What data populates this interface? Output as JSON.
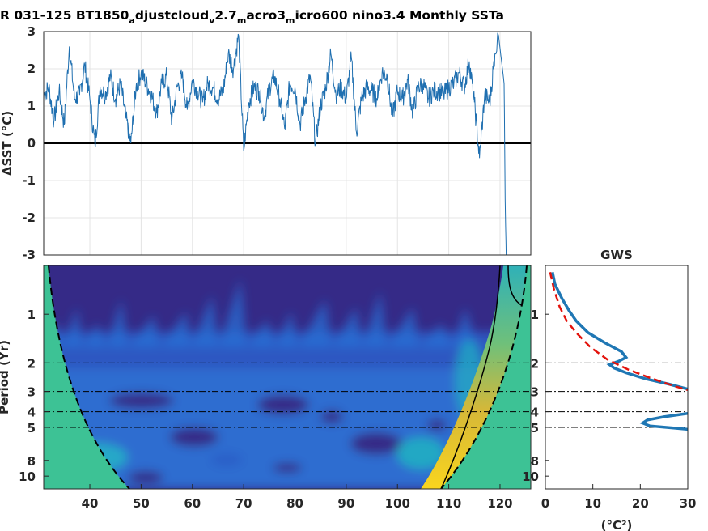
{
  "title": {
    "parts": [
      {
        "t": "R 031-125 BT1850",
        "sub": false
      },
      {
        "t": "a",
        "sub": true
      },
      {
        "t": "djustcloud",
        "sub": false
      },
      {
        "t": "v",
        "sub": true
      },
      {
        "t": "2.7",
        "sub": false
      },
      {
        "t": "m",
        "sub": true
      },
      {
        "t": "acro3",
        "sub": false
      },
      {
        "t": "m",
        "sub": true
      },
      {
        "t": "icro600 nino3.4 Monthly SSTa",
        "sub": false
      }
    ]
  },
  "chart_data": [
    {
      "type": "line",
      "panel": "time-series",
      "ylabel": "ΔSST (°C)",
      "xlim": [
        31,
        126
      ],
      "ylim": [
        -3,
        3
      ],
      "y_ticks": [
        "3",
        "2",
        "1",
        "0",
        "-1",
        "-2",
        "-3"
      ],
      "zero_line": true,
      "grid": true,
      "color": "#1f77b4",
      "series": [
        {
          "x": [
            31,
            32,
            33,
            34,
            35,
            36,
            37,
            38,
            39,
            40,
            41,
            42,
            43,
            44,
            45,
            46,
            47,
            48,
            49,
            50,
            51,
            52,
            53,
            54,
            55,
            56,
            57,
            58,
            59,
            60,
            61,
            62,
            63,
            64,
            65,
            66,
            67,
            68,
            69,
            70,
            71,
            72,
            73,
            74,
            75,
            76,
            77,
            78,
            79,
            80,
            81,
            82,
            83,
            84,
            85,
            86,
            87,
            88,
            89,
            90,
            91,
            92,
            93,
            94,
            95,
            96,
            97,
            98,
            99,
            100,
            101,
            102,
            103,
            104,
            105,
            106,
            107,
            108,
            109,
            110,
            111,
            112,
            113,
            114,
            115,
            116,
            117,
            118,
            119,
            119.7,
            120.3,
            120.8,
            121.0,
            121.2
          ],
          "y": [
            1.3,
            1.5,
            0.6,
            1.4,
            0.5,
            2.6,
            1.2,
            1.3,
            2.1,
            1.2,
            -0.05,
            1.5,
            1.3,
            1.8,
            1.2,
            1.6,
            0.7,
            0.0,
            1.5,
            1.9,
            1.6,
            1.3,
            0.8,
            1.6,
            1.8,
            0.6,
            1.5,
            1.8,
            0.9,
            1.7,
            1.4,
            1.1,
            1.6,
            1.5,
            1.2,
            1.4,
            2.4,
            2.0,
            2.9,
            -0.2,
            1.1,
            1.5,
            1.4,
            0.7,
            1.5,
            1.8,
            1.2,
            0.4,
            1.6,
            1.5,
            0.5,
            1.2,
            1.8,
            0.0,
            1.0,
            1.5,
            2.4,
            1.3,
            1.5,
            1.2,
            2.3,
            0.3,
            1.2,
            1.5,
            1.4,
            1.2,
            1.9,
            1.8,
            0.7,
            1.4,
            1.2,
            1.7,
            0.8,
            1.5,
            1.6,
            1.2,
            1.4,
            1.4,
            1.3,
            1.5,
            1.6,
            1.9,
            1.5,
            2.2,
            1.1,
            -0.4,
            1.3,
            1.1,
            2.4,
            2.9,
            2.2,
            1.6,
            -1.5,
            -3.0
          ]
        }
      ]
    },
    {
      "type": "heatmap",
      "panel": "wavelet-power-spectrum",
      "ylabel": "Period (Yr)",
      "xlim": [
        31,
        126
      ],
      "y_scale": "log",
      "y_ticks": [
        "1",
        "2",
        "3",
        "4",
        "5",
        "8",
        "10"
      ],
      "y_tick_values": [
        1,
        2,
        3,
        4,
        5,
        8,
        10
      ],
      "reference_periods": [
        2,
        3,
        4,
        5
      ],
      "colormap": [
        "#352a87",
        "#2c6fd6",
        "#23a8c4",
        "#51c08e",
        "#c3bc3b",
        "#f9d51e"
      ]
    },
    {
      "type": "line",
      "panel": "global-wavelet-spectrum",
      "title": "GWS",
      "xlabel": "(°C²)",
      "xlim": [
        0,
        30
      ],
      "x_ticks": [
        "0",
        "10",
        "20",
        "30"
      ],
      "y_scale": "log",
      "y_ticks": [
        "1",
        "2",
        "3",
        "4",
        "5",
        "8",
        "10"
      ],
      "reference_periods": [
        2,
        3,
        4,
        5
      ],
      "series": [
        {
          "style": "solid",
          "color": "#1f77b4",
          "period": [
            0.55,
            0.65,
            0.8,
            0.95,
            1.1,
            1.3,
            1.5,
            1.7,
            1.85,
            1.95,
            2.05,
            2.15,
            2.3,
            2.5,
            2.7,
            2.9,
            3.1,
            3.3,
            3.6,
            3.9,
            4.1,
            4.3,
            4.5,
            4.7,
            4.9,
            5.05,
            5.2
          ],
          "power": [
            1.5,
            2.0,
            3.5,
            5.0,
            6.5,
            9.0,
            12.5,
            16.0,
            17.0,
            15.5,
            13.5,
            14.5,
            17.0,
            21.0,
            26.0,
            30.0,
            36.0,
            36.0,
            40.0,
            36.0,
            30.0,
            25.0,
            21.5,
            20.5,
            22.0,
            27.0,
            32.0
          ]
        },
        {
          "style": "dashed",
          "color": "#e3120b",
          "period": [
            0.55,
            0.7,
            0.9,
            1.1,
            1.3,
            1.6,
            1.9,
            2.2,
            2.5,
            2.8,
            3.0
          ],
          "power": [
            1.0,
            1.8,
            3.0,
            4.5,
            6.5,
            9.5,
            13.0,
            17.5,
            22.5,
            27.5,
            31.0
          ]
        }
      ]
    }
  ]
}
